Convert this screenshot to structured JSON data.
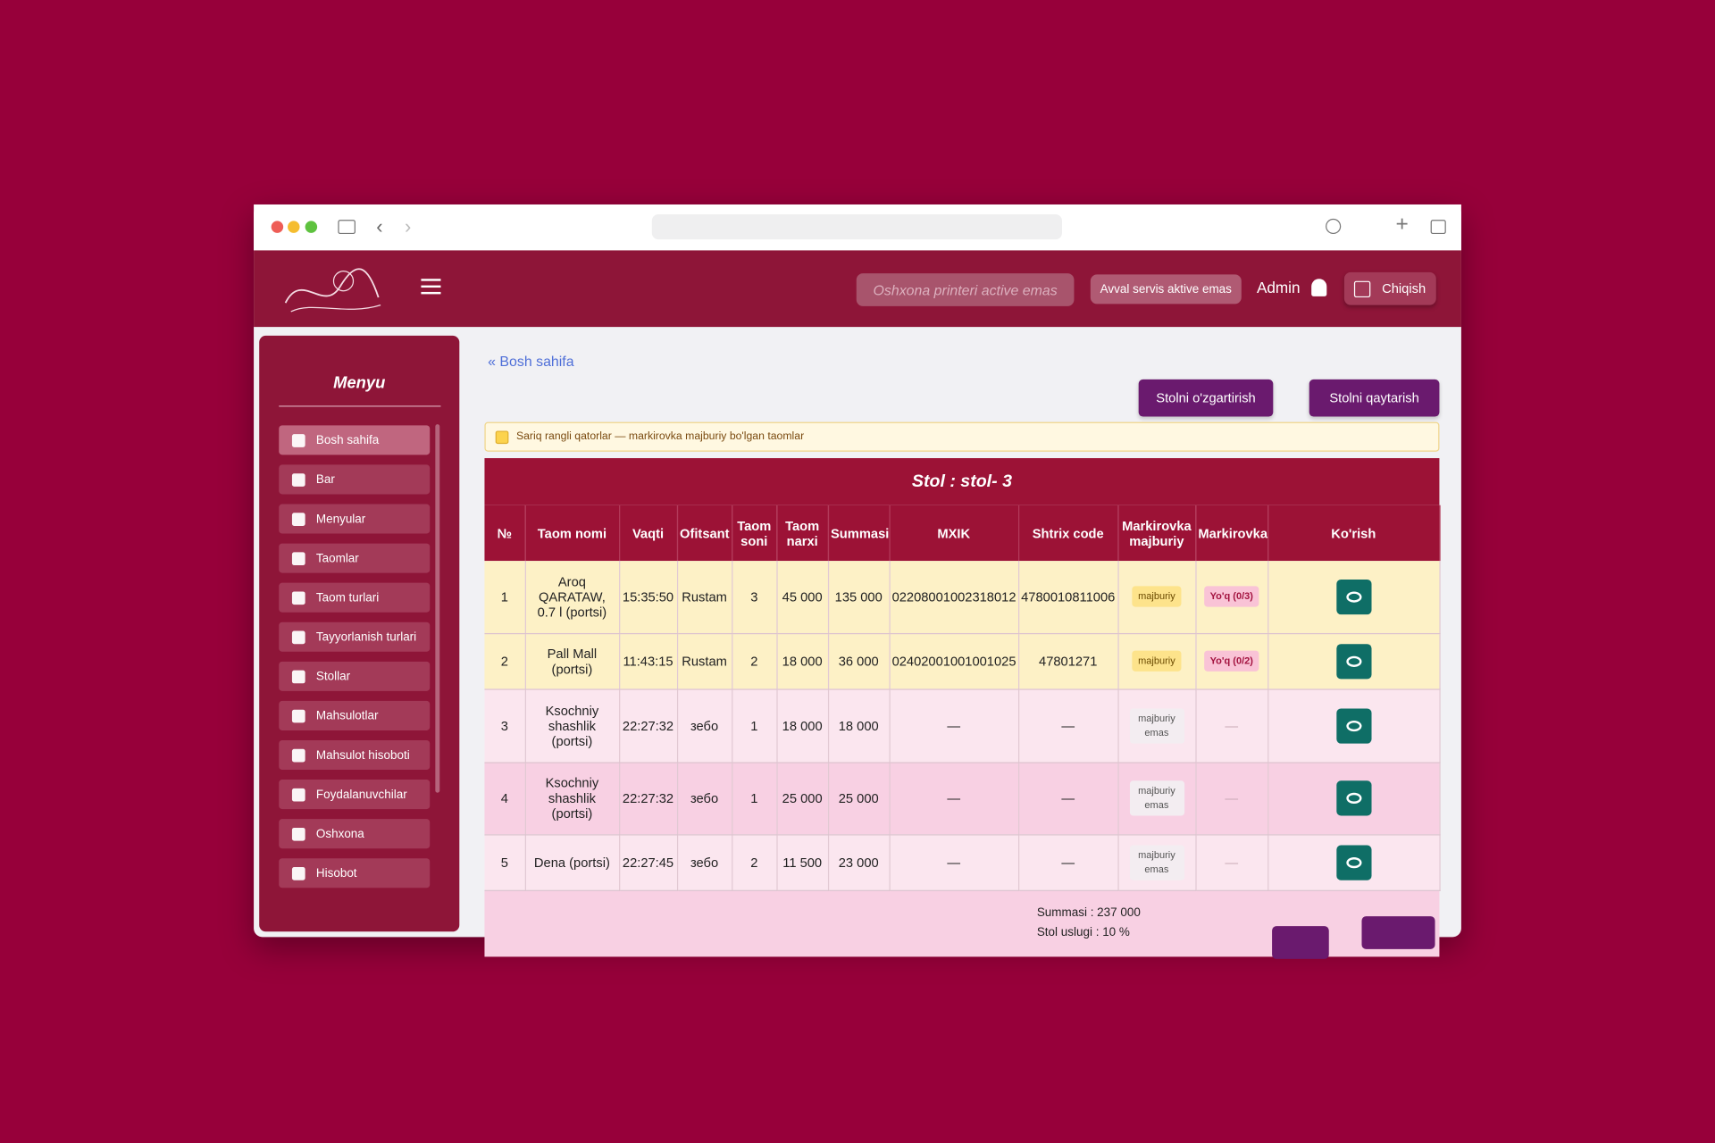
{
  "header": {
    "printer_status": "Oshxona printeri active emas",
    "service_status": "Avval servis aktive emas",
    "user": "Admin",
    "logout": "Chiqish"
  },
  "sidebar": {
    "title": "Menyu",
    "items": [
      "Bosh sahifa",
      "Bar",
      "Menyular",
      "Taomlar",
      "Taom turlari",
      "Tayyorlanish turlari",
      "Stollar",
      "Mahsulotlar",
      "Mahsulot hisoboti",
      "Foydalanuvchilar",
      "Oshxona",
      "Hisobot"
    ]
  },
  "breadcrumb": "Bosh sahifa",
  "actions": [
    "Stolni o'zgartirish",
    "Stolni qaytarish"
  ],
  "notice": "Sariq rangli qatorlar — markirovka majburiy bo'lgan taomlar",
  "table": {
    "title": "Stol : stol- 3",
    "columns": [
      "№",
      "Taom nomi",
      "Vaqti",
      "Ofitsant",
      "Taom soni",
      "Taom narxi",
      "Summasi",
      "MXIK",
      "Shtrix code",
      "Markirovka majburiy",
      "Markirovka",
      "Ko'rish"
    ],
    "rows": [
      {
        "marked": true,
        "cells": [
          "1",
          "Aroq QARATAW, 0.7 l (portsi)",
          "15:35:50",
          "Rustam",
          "3",
          "45 000",
          "135 000",
          "02208001002318012",
          "4780010811006",
          "majburiy",
          "Yo'q (0/3)"
        ]
      },
      {
        "marked": true,
        "cells": [
          "2",
          "Pall Mall (portsi)",
          "11:43:15",
          "Rustam",
          "2",
          "18 000",
          "36 000",
          "02402001001001025",
          "47801271",
          "majburiy",
          "Yo'q (0/2)"
        ]
      },
      {
        "marked": false,
        "cells": [
          "3",
          "Ksochniy shashlik (portsi)",
          "22:27:32",
          "зебо",
          "1",
          "18 000",
          "18 000",
          "—",
          "—",
          "majburiy emas",
          "—"
        ]
      },
      {
        "marked": false,
        "cells": [
          "4",
          "Ksochniy shashlik (portsi)",
          "22:27:32",
          "зебо",
          "1",
          "25 000",
          "25 000",
          "—",
          "—",
          "majburiy emas",
          "—"
        ]
      },
      {
        "marked": false,
        "cells": [
          "5",
          "Dena (portsi)",
          "22:27:45",
          "зебо",
          "2",
          "11 500",
          "23 000",
          "—",
          "—",
          "majburiy emas",
          "—"
        ]
      }
    ]
  },
  "summary": [
    "Summasi : 237 000",
    "Stol uslugi : 10 %"
  ]
}
